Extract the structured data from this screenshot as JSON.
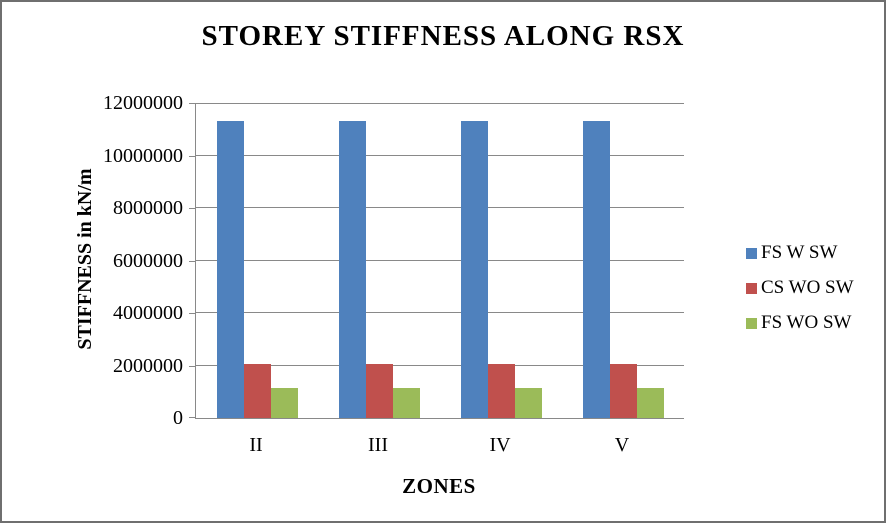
{
  "window": {
    "border_color": "#6f6f6f",
    "background": "#ffffff"
  },
  "chart_data": {
    "type": "bar",
    "title": "STOREY STIFFNESS ALONG RSX",
    "xlabel": "ZONES",
    "ylabel": "STIFFNESS in kN/m",
    "categories": [
      "II",
      "III",
      "IV",
      "V"
    ],
    "series": [
      {
        "name": "FS W SW",
        "color": "#4F81BD",
        "values": [
          11300000,
          11300000,
          11300000,
          11300000
        ]
      },
      {
        "name": "CS WO SW",
        "color": "#C0504D",
        "values": [
          2050000,
          2050000,
          2050000,
          2050000
        ]
      },
      {
        "name": "FS WO SW",
        "color": "#9BBB59",
        "values": [
          1150000,
          1150000,
          1150000,
          1150000
        ]
      }
    ],
    "ylim": [
      0,
      12000000
    ],
    "ytick_step": 2000000,
    "yticks": [
      "0",
      "2000000",
      "4000000",
      "6000000",
      "8000000",
      "10000000",
      "12000000"
    ],
    "grid": true,
    "gridline_color": "#898989",
    "legend_position": "right",
    "text_color": "#000000"
  }
}
